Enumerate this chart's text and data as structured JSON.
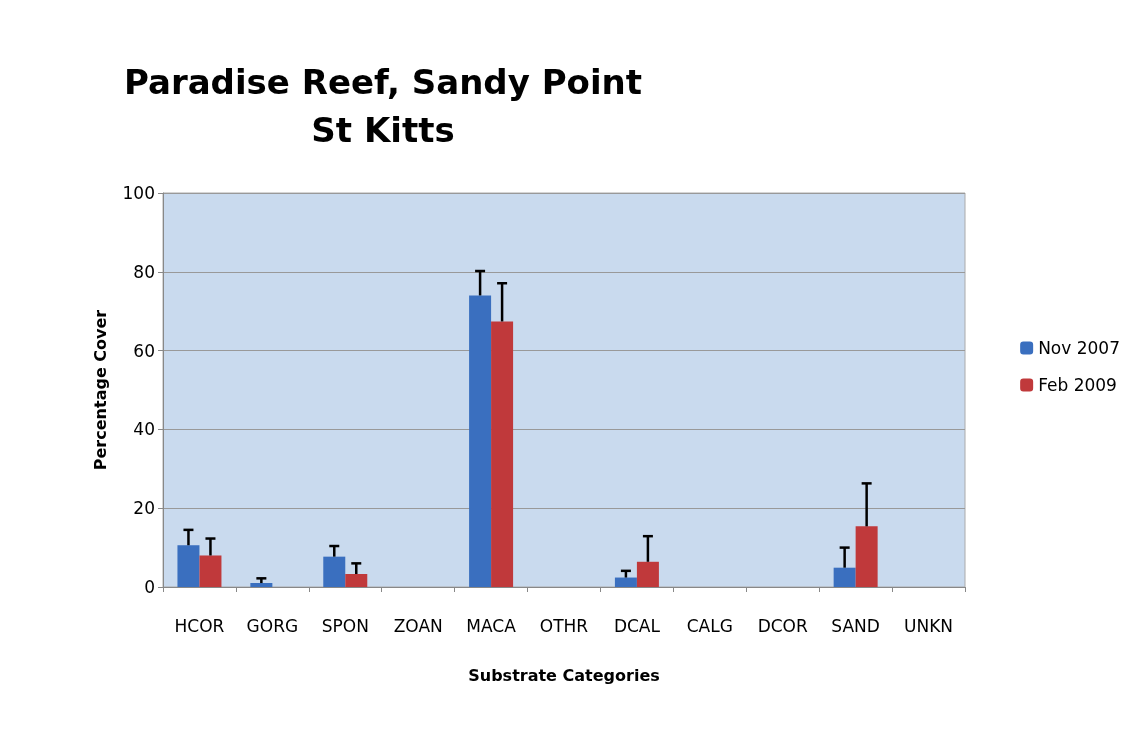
{
  "chart_data": {
    "type": "bar",
    "title": "Paradise Reef, Sandy Point\nSt Kitts",
    "xlabel": "Substrate Categories",
    "ylabel": "Percentage Cover",
    "categories": [
      "HCOR",
      "GORG",
      "SPON",
      "ZOAN",
      "MACA",
      "OTHR",
      "DCAL",
      "CALG",
      "DCOR",
      "SAND",
      "UNKN"
    ],
    "series": [
      {
        "name": "Nov 2007",
        "color": "#3a6fbf",
        "values": [
          10.6,
          1.0,
          7.7,
          0,
          74.0,
          0,
          2.4,
          0,
          0,
          4.9,
          0
        ],
        "errors": [
          [
            10.6,
            14.5
          ],
          [
            1.0,
            2.2
          ],
          [
            7.7,
            10.4
          ],
          null,
          [
            74.0,
            80.2
          ],
          null,
          [
            2.4,
            4.1
          ],
          null,
          null,
          [
            4.9,
            10.0
          ],
          null
        ]
      },
      {
        "name": "Feb 2009",
        "color": "#c0393b",
        "values": [
          8.0,
          0,
          3.3,
          0,
          67.4,
          0,
          6.4,
          0,
          0,
          15.4,
          0
        ],
        "errors": [
          [
            8.0,
            12.3
          ],
          null,
          [
            3.3,
            6.0
          ],
          null,
          [
            67.4,
            77.1
          ],
          null,
          [
            6.4,
            12.9
          ],
          null,
          null,
          [
            15.4,
            26.3
          ],
          null
        ]
      }
    ],
    "ylim": [
      0,
      100
    ],
    "yticks": [
      0,
      20,
      40,
      60,
      80,
      100
    ],
    "grid": "y",
    "legend": "right"
  }
}
